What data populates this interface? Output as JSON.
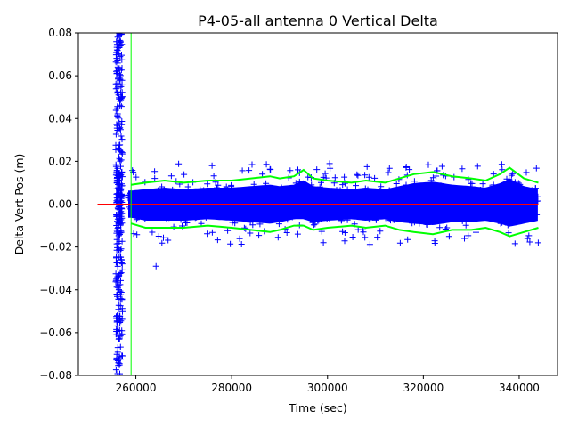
{
  "chart_data": {
    "type": "scatter",
    "title": "P4-05-all antenna 0 Vertical Delta",
    "xlabel": "Time (sec)",
    "ylabel": "Delta Vert Pos (m)",
    "xlim": [
      248000,
      348000
    ],
    "ylim": [
      -0.08,
      0.08
    ],
    "grid": false,
    "x_ticks": [
      260000,
      280000,
      300000,
      320000,
      340000
    ],
    "x_tick_labels": [
      "260000",
      "280000",
      "300000",
      "320000",
      "340000"
    ],
    "y_ticks": [
      -0.08,
      -0.06,
      -0.04,
      -0.02,
      0.0,
      0.02,
      0.04,
      0.06,
      0.08
    ],
    "y_tick_labels": [
      "−0.08",
      "−0.06",
      "−0.04",
      "−0.02",
      "0.00",
      "0.02",
      "0.04",
      "0.06",
      "0.08"
    ],
    "series": [
      {
        "kind": "points",
        "marker": "plus",
        "color": "#0000ff",
        "x_range": [
          255800,
          344000
        ],
        "dense_band": [
          -0.008,
          0.008
        ],
        "spike_column": {
          "x": [
            255800,
            257200
          ],
          "y": [
            -0.08,
            0.08
          ]
        }
      },
      {
        "kind": "upper-envelope",
        "color": "#00ff00",
        "x": [
          259000,
          262000,
          266000,
          270000,
          275000,
          280000,
          284000,
          288000,
          290000,
          293000,
          295000,
          297000,
          300000,
          305000,
          308000,
          312000,
          315000,
          318000,
          322000,
          326000,
          330000,
          333000,
          336000,
          338000,
          341000,
          344000
        ],
        "y": [
          0.009,
          0.01,
          0.011,
          0.01,
          0.011,
          0.011,
          0.012,
          0.013,
          0.012,
          0.013,
          0.016,
          0.012,
          0.011,
          0.01,
          0.011,
          0.01,
          0.012,
          0.014,
          0.015,
          0.013,
          0.012,
          0.011,
          0.014,
          0.017,
          0.012,
          0.01
        ]
      },
      {
        "kind": "lower-envelope",
        "color": "#00ff00",
        "x": [
          259000,
          262000,
          266000,
          270000,
          275000,
          280000,
          284000,
          288000,
          290000,
          293000,
          295000,
          297000,
          300000,
          305000,
          308000,
          312000,
          315000,
          318000,
          322000,
          326000,
          330000,
          333000,
          336000,
          338000,
          341000,
          344000
        ],
        "y": [
          -0.009,
          -0.011,
          -0.011,
          -0.011,
          -0.01,
          -0.011,
          -0.012,
          -0.013,
          -0.012,
          -0.01,
          -0.01,
          -0.012,
          -0.011,
          -0.01,
          -0.011,
          -0.01,
          -0.012,
          -0.013,
          -0.014,
          -0.012,
          -0.012,
          -0.011,
          -0.013,
          -0.015,
          -0.013,
          -0.011
        ]
      },
      {
        "kind": "zero-line",
        "color": "#ff0000",
        "x": [
          252000,
          344000
        ],
        "y": [
          0.0,
          0.0
        ]
      },
      {
        "kind": "vertical-marker",
        "color": "#00ff00",
        "x": 259000
      }
    ]
  }
}
